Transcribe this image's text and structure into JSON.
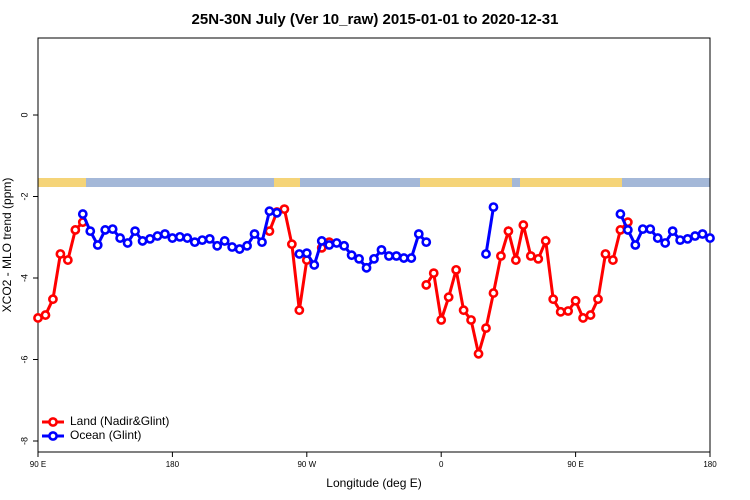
{
  "chart_data": {
    "type": "line",
    "title": "25N-30N July (Ver 10_raw)   2015-01-01 to 2020-12-31",
    "x_label": "Longitude (deg E)",
    "y_label": "XCO2 - MLO trend (ppm)",
    "x": [
      90,
      95,
      100,
      105,
      110,
      115,
      120,
      125,
      130,
      135,
      140,
      145,
      150,
      155,
      160,
      165,
      170,
      175,
      180,
      185,
      190,
      195,
      200,
      205,
      210,
      215,
      220,
      225,
      230,
      235,
      240,
      245,
      250,
      255,
      260,
      265,
      270,
      275,
      280,
      285,
      290,
      295,
      300,
      305,
      310,
      315,
      320,
      325,
      330,
      335,
      340,
      345,
      350,
      355,
      360,
      365,
      370,
      375,
      380,
      385,
      390,
      395,
      400,
      405,
      410,
      415,
      420,
      425,
      430,
      435,
      440,
      445,
      450,
      455,
      460,
      465,
      470,
      475,
      480,
      485,
      490,
      495,
      500,
      505,
      510,
      515,
      520,
      525,
      530,
      535,
      540
    ],
    "series": [
      {
        "name": "Land (Nadir&Glint)",
        "color": "#ff0000",
        "values": [
          -4.98,
          -4.91,
          -4.52,
          -3.41,
          -3.56,
          -2.82,
          -2.63,
          null,
          null,
          null,
          null,
          null,
          null,
          null,
          null,
          null,
          null,
          null,
          null,
          null,
          null,
          null,
          null,
          null,
          null,
          null,
          null,
          null,
          null,
          null,
          null,
          -2.85,
          -2.38,
          -2.31,
          -3.17,
          -4.79,
          -3.56,
          null,
          -3.26,
          -3.12,
          null,
          null,
          null,
          null,
          null,
          null,
          null,
          null,
          null,
          null,
          null,
          null,
          -4.17,
          -3.88,
          -5.03,
          -4.47,
          -3.8,
          -4.79,
          -5.03,
          -5.86,
          -5.23,
          -4.37,
          -3.46,
          -2.85,
          -3.56,
          -2.7,
          -3.46,
          -3.53,
          -3.09,
          -4.52,
          -4.83,
          -4.81,
          -4.56,
          -4.98,
          -4.91,
          -4.52,
          -3.41,
          -3.56,
          -2.82,
          -2.63,
          null,
          null,
          null,
          null,
          null,
          null,
          null,
          null,
          null,
          null,
          null
        ]
      },
      {
        "name": "Ocean (Glint)",
        "color": "#0000ff",
        "values": [
          null,
          null,
          null,
          null,
          null,
          null,
          -2.43,
          -2.85,
          -3.19,
          -2.82,
          -2.8,
          -3.02,
          -3.14,
          -2.85,
          -3.09,
          -3.04,
          -2.97,
          -2.92,
          -3.02,
          -2.99,
          -3.02,
          -3.12,
          -3.07,
          -3.04,
          -3.21,
          -3.09,
          -3.24,
          -3.29,
          -3.21,
          -2.92,
          -3.12,
          -2.36,
          -2.4,
          null,
          null,
          -3.41,
          -3.39,
          -3.68,
          -3.09,
          -3.19,
          -3.14,
          -3.21,
          -3.44,
          -3.53,
          -3.75,
          -3.53,
          -3.31,
          -3.46,
          -3.46,
          -3.51,
          -3.51,
          -2.92,
          -3.12,
          null,
          null,
          null,
          null,
          null,
          null,
          null,
          -3.41,
          -2.26,
          null,
          null,
          null,
          null,
          null,
          null,
          null,
          null,
          null,
          null,
          null,
          null,
          null,
          null,
          null,
          null,
          -2.43,
          -2.82,
          -3.19,
          -2.8,
          -2.8,
          -3.02,
          -3.14,
          -2.85,
          -3.07,
          -3.04,
          -2.97,
          -2.92,
          -3.02
        ]
      }
    ],
    "xlim": [
      90,
      540
    ],
    "xticks": [
      {
        "value": 90,
        "label": "90 E"
      },
      180,
      {
        "value": 270,
        "label": "90 W"
      },
      {
        "value": 360,
        "label": "0"
      },
      {
        "value": 450,
        "label": "90 E"
      },
      {
        "value": 540,
        "label": "180"
      }
    ],
    "ylim": [
      -8.27,
      1.89
    ],
    "yticks": [
      0,
      -2,
      -4,
      -6,
      -8
    ],
    "legend": "bottom-left"
  }
}
